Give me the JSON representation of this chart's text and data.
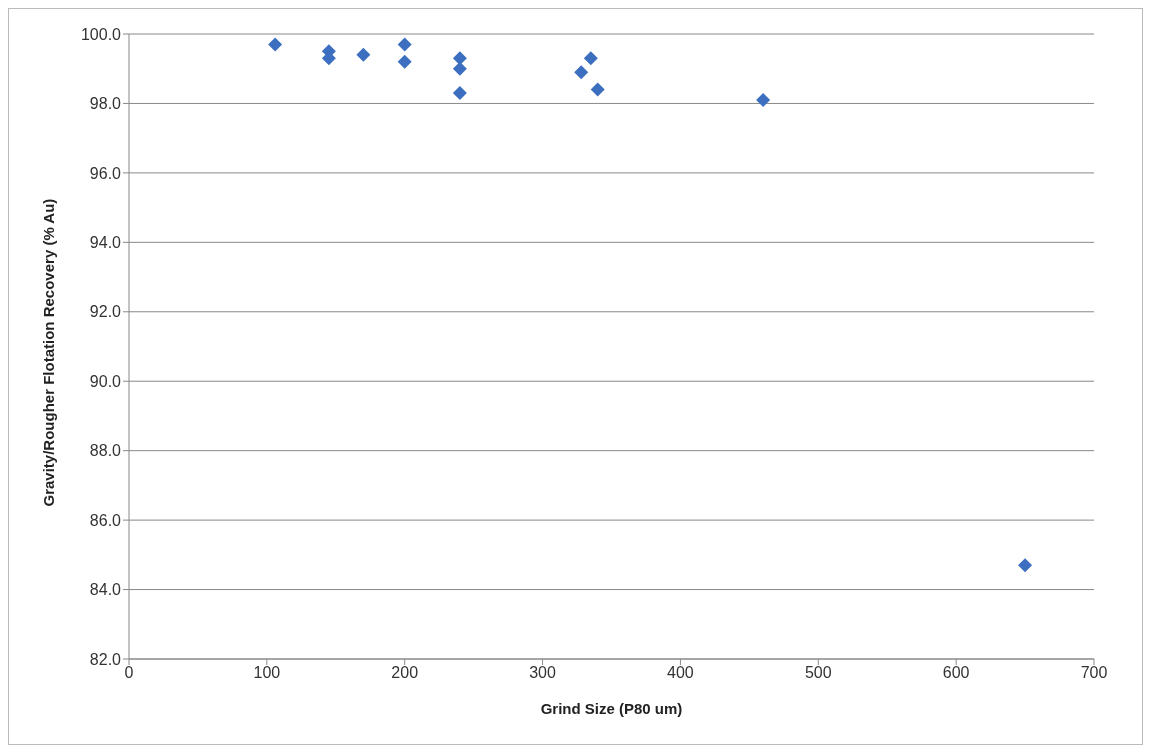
{
  "chart_data": {
    "type": "scatter",
    "xlabel": "Grind Size (P80 um)",
    "ylabel": "Gravity/Rougher Flotation Recovery (% Au)",
    "series": [
      {
        "color": "#3c6fbf",
        "x": [
          106,
          145,
          145,
          170,
          200,
          200,
          240,
          240,
          240,
          328,
          335,
          340,
          460,
          650
        ],
        "values": [
          99.7,
          99.5,
          99.3,
          99.4,
          99.7,
          99.2,
          99.3,
          99.0,
          98.3,
          98.9,
          99.3,
          98.4,
          98.1,
          84.7
        ]
      }
    ],
    "xlim": [
      0,
      700
    ],
    "xticks": [
      0,
      100,
      200,
      300,
      400,
      500,
      600,
      700
    ],
    "ylim": [
      82,
      100
    ],
    "yticks": [
      {
        "value": 82,
        "label": "82.0"
      },
      {
        "value": 84,
        "label": "84.0"
      },
      {
        "value": 86,
        "label": "86.0"
      },
      {
        "value": 88,
        "label": "88.0"
      },
      {
        "value": 90,
        "label": "90.0"
      },
      {
        "value": 92,
        "label": "92.0"
      },
      {
        "value": 94,
        "label": "94.0"
      },
      {
        "value": 96,
        "label": "96.0"
      },
      {
        "value": 98,
        "label": "98.0"
      },
      {
        "value": 100,
        "label": "100.0"
      }
    ],
    "grid": "y",
    "marker": "diamond",
    "legend": false
  }
}
